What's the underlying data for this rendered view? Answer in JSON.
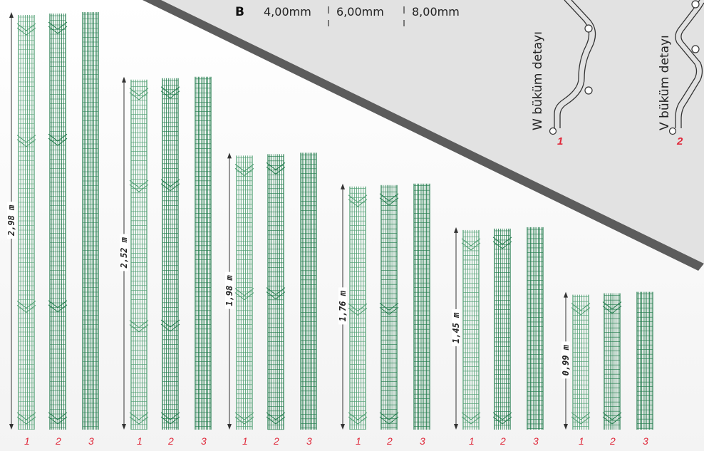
{
  "header": {
    "letter": "B",
    "wire_sizes": [
      "4,00mm",
      "6,00mm",
      "8,00mm"
    ]
  },
  "details": [
    {
      "title": "W büküm detayı",
      "number": "1"
    },
    {
      "title": "V büküm detayı",
      "number": "2"
    }
  ],
  "panel_groups": [
    {
      "height_label": "2,98 m",
      "height_m": 2.98,
      "panels": [
        "1",
        "2",
        "3"
      ]
    },
    {
      "height_label": "2,52 m",
      "height_m": 2.52,
      "panels": [
        "1",
        "2",
        "3"
      ]
    },
    {
      "height_label": "1,98 m",
      "height_m": 1.98,
      "panels": [
        "1",
        "2",
        "3"
      ]
    },
    {
      "height_label": "1,76 m",
      "height_m": 1.76,
      "panels": [
        "1",
        "2",
        "3"
      ]
    },
    {
      "height_label": "1,45 m",
      "height_m": 1.45,
      "panels": [
        "1",
        "2",
        "3"
      ]
    },
    {
      "height_label": "0,99 m",
      "height_m": 0.99,
      "panels": [
        "1",
        "2",
        "3"
      ]
    }
  ],
  "colors": {
    "panel_green": "#1f7a4a",
    "panel_green_light": "#4a9c6e",
    "label_red": "#e0283a",
    "banner_gray": "#e2e2e2",
    "banner_edge": "#6a6a6a"
  }
}
